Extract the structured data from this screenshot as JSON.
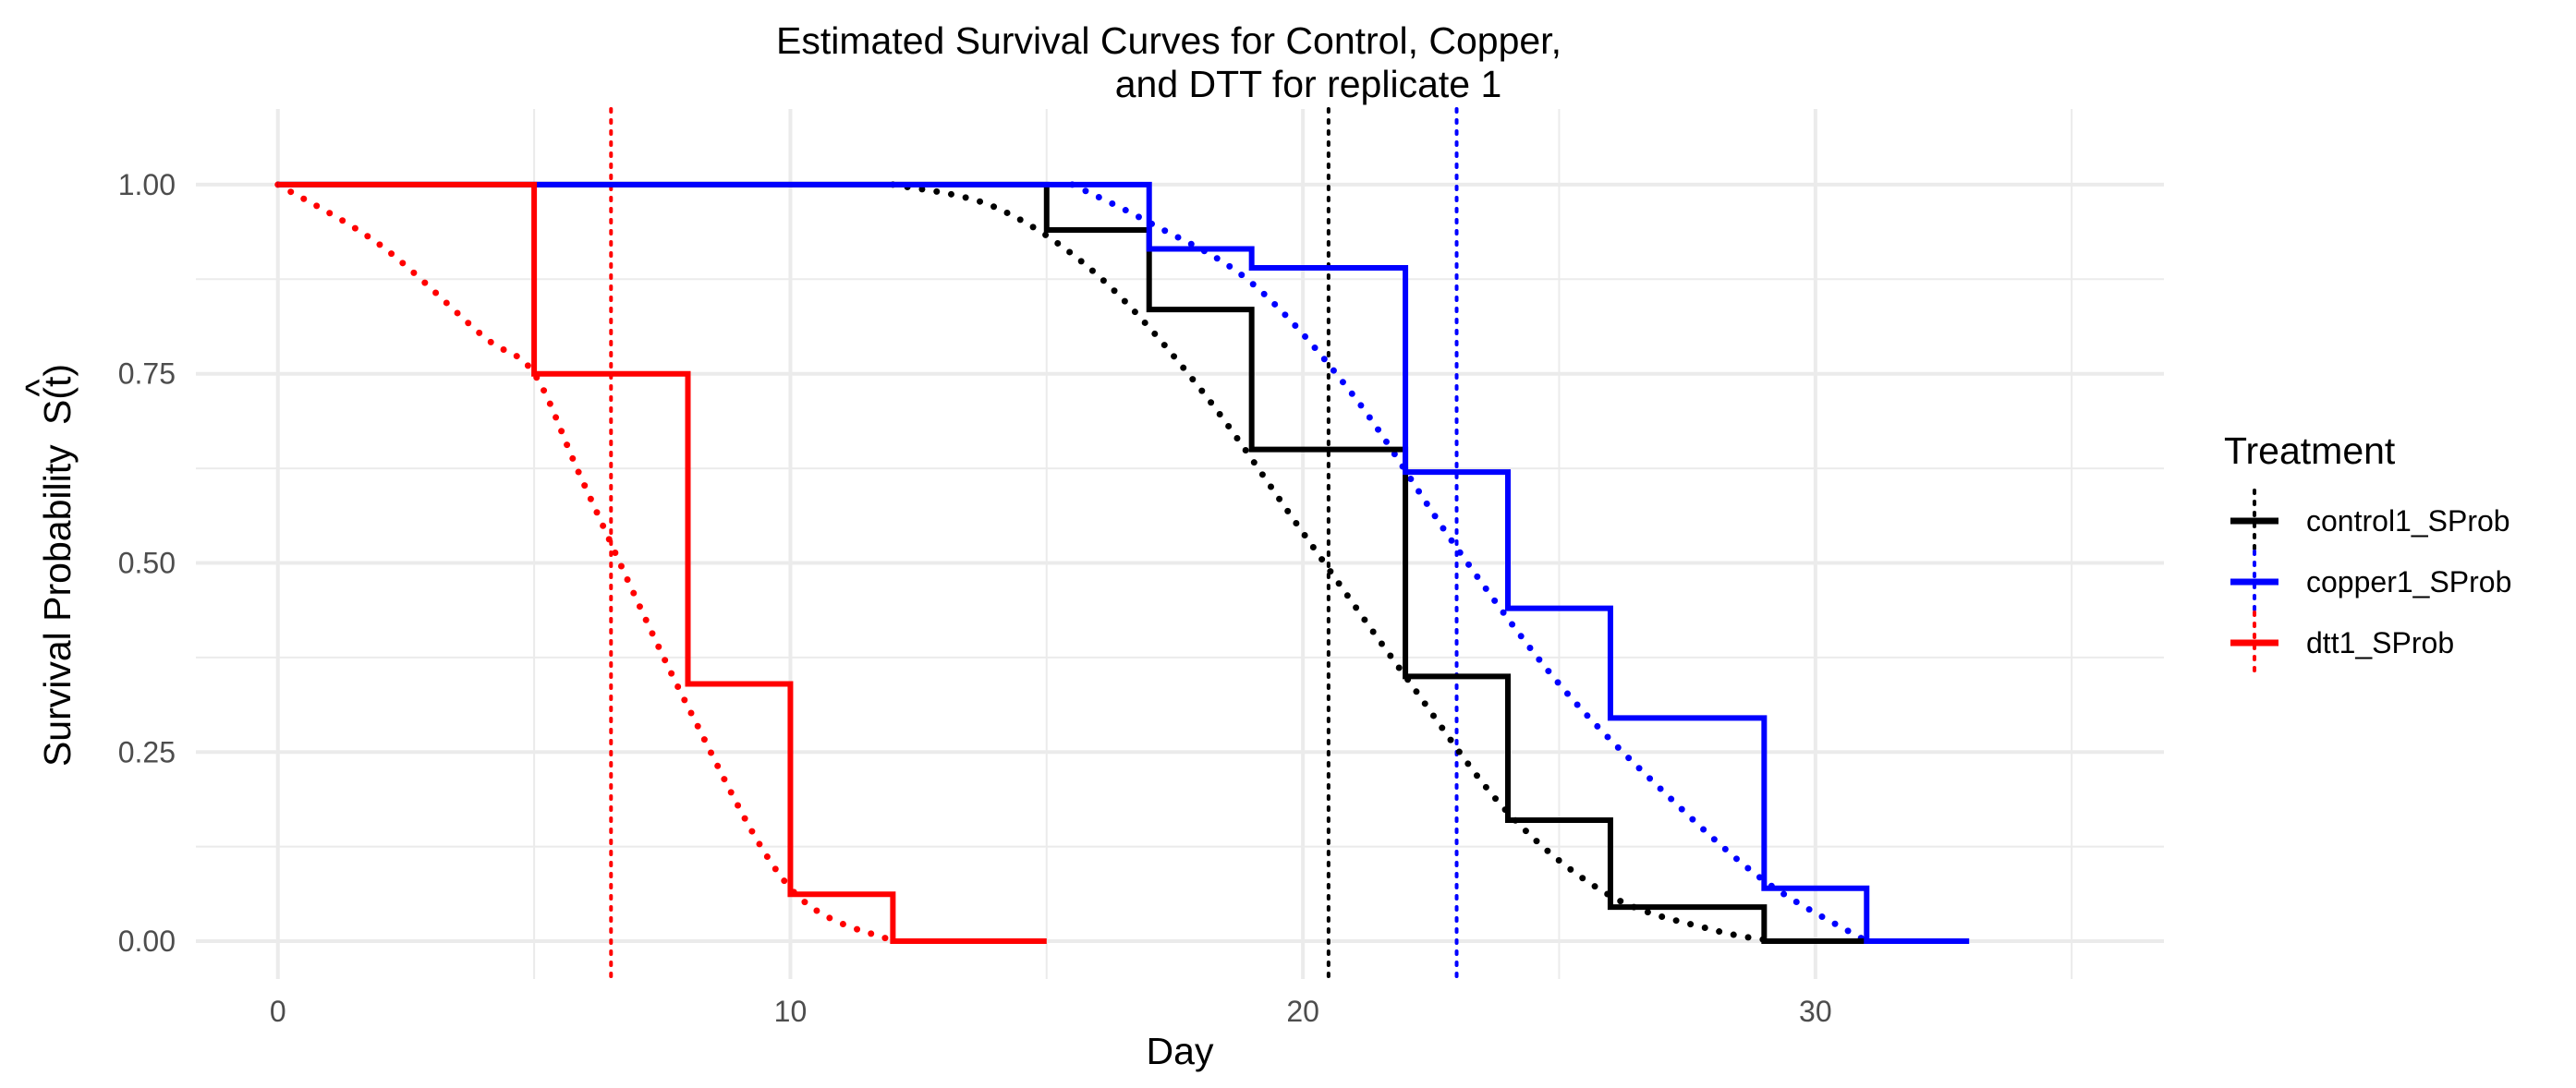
{
  "chart_data": {
    "type": "line",
    "title_line1": "Estimated Survival Curves for Control, Copper,",
    "title_line2": "and DTT for replicate 1",
    "xlabel": "Day",
    "ylabel": "Survival Probability",
    "ylabel_symbol": "S(t)",
    "ylabel_hat": "^",
    "xlim": [
      -1.6,
      36.8
    ],
    "ylim": [
      -0.05,
      1.1
    ],
    "x_ticks": [
      0,
      10,
      20,
      30
    ],
    "x_tick_labels": [
      "0",
      "10",
      "20",
      "30"
    ],
    "y_ticks": [
      0,
      0.25,
      0.5,
      0.75,
      1
    ],
    "y_tick_labels": [
      "0.00",
      "0.25",
      "0.50",
      "0.75",
      "1.00"
    ],
    "grid": true,
    "legend_position": "right",
    "legend_title": "Treatment",
    "series": [
      {
        "name": "control1_SProb",
        "color": "#000000",
        "step_x": [
          0,
          15,
          15,
          17,
          17,
          19,
          19,
          22,
          22,
          24,
          24,
          26,
          26,
          29,
          29,
          31
        ],
        "step_y": [
          1.0,
          1.0,
          0.94,
          0.94,
          0.835,
          0.835,
          0.65,
          0.65,
          0.35,
          0.35,
          0.16,
          0.16,
          0.045,
          0.045,
          0.0,
          0.0
        ],
        "fitted_x": [
          12,
          14,
          16,
          18,
          20,
          22,
          24,
          26,
          28,
          29.2
        ],
        "fitted_y": [
          1.0,
          0.97,
          0.88,
          0.73,
          0.54,
          0.35,
          0.17,
          0.06,
          0.015,
          0.0
        ],
        "median_day": 20.5
      },
      {
        "name": "copper1_SProb",
        "color": "#0000ff",
        "step_x": [
          0,
          17,
          17,
          19,
          19,
          22,
          22,
          24,
          24,
          26,
          26,
          29,
          29,
          31,
          31,
          33
        ],
        "step_y": [
          1.0,
          1.0,
          0.915,
          0.915,
          0.89,
          0.89,
          0.62,
          0.62,
          0.44,
          0.44,
          0.295,
          0.295,
          0.07,
          0.07,
          0.0,
          0.0
        ],
        "fitted_x": [
          15.5,
          17,
          19,
          21,
          23,
          25,
          27,
          29,
          31
        ],
        "fitted_y": [
          1.0,
          0.95,
          0.87,
          0.72,
          0.52,
          0.34,
          0.2,
          0.08,
          0.0
        ],
        "median_day": 23
      },
      {
        "name": "dtt1_SProb",
        "color": "#ff0000",
        "step_x": [
          0,
          5,
          5,
          8,
          8,
          10,
          10,
          12,
          12,
          15
        ],
        "step_y": [
          1.0,
          1.0,
          0.75,
          0.75,
          0.34,
          0.34,
          0.062,
          0.062,
          0.0,
          0.0
        ],
        "fitted_x": [
          0,
          2,
          4,
          5,
          6,
          8,
          10,
          12
        ],
        "fitted_y": [
          1.0,
          0.92,
          0.8,
          0.75,
          0.6,
          0.31,
          0.07,
          0.0
        ],
        "median_day": 6.5
      }
    ]
  }
}
